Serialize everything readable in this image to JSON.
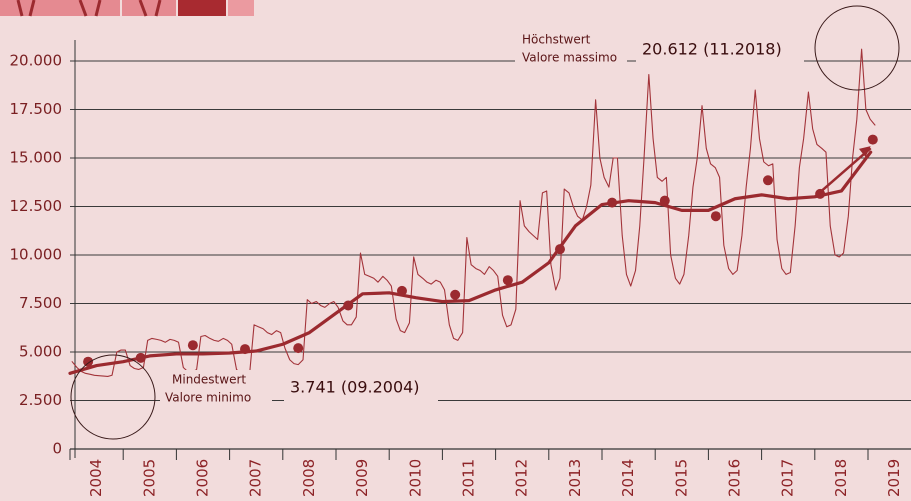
{
  "chart_data": {
    "type": "line",
    "ylim": [
      0,
      20000
    ],
    "yticks": [
      0,
      {
        "value": 2500,
        "label": "2.500"
      },
      {
        "value": 5000,
        "label": "5.000"
      },
      {
        "value": 7500,
        "label": "7.500"
      },
      {
        "value": 10000,
        "label": "10.000"
      },
      {
        "value": 12500,
        "label": "12.500"
      },
      {
        "value": 15000,
        "label": "15.000"
      },
      {
        "value": 17500,
        "label": "17.500"
      },
      {
        "value": 20000,
        "label": "20.000"
      }
    ],
    "xlim": [
      2004,
      2019.75
    ],
    "xticks": [
      {
        "value": 2004.5,
        "label": "2004"
      },
      {
        "value": 2005.5,
        "label": "2005"
      },
      {
        "value": 2006.5,
        "label": "2006"
      },
      {
        "value": 2007.5,
        "label": "2007"
      },
      {
        "value": 2008.5,
        "label": "2008"
      },
      {
        "value": 2009.5,
        "label": "2009"
      },
      {
        "value": 2010.5,
        "label": "2010"
      },
      {
        "value": 2011.5,
        "label": "2011"
      },
      {
        "value": 2012.5,
        "label": "2012"
      },
      {
        "value": 2013.5,
        "label": "2013"
      },
      {
        "value": 2014.5,
        "label": "2014"
      },
      {
        "value": 2015.5,
        "label": "2015"
      },
      {
        "value": 2016.5,
        "label": "2016"
      },
      {
        "value": 2017.5,
        "label": "2017"
      },
      {
        "value": 2018.5,
        "label": "2018"
      },
      {
        "value": 2019.5,
        "label": "2019"
      }
    ],
    "grid": true,
    "series": [
      {
        "style": "thin",
        "color": "#a3343a",
        "x": [
          2004.04,
          2004.13,
          2004.21,
          2004.29,
          2004.38,
          2004.46,
          2004.54,
          2004.63,
          2004.71,
          2004.79,
          2004.88,
          2004.96,
          2005.04,
          2005.13,
          2005.21,
          2005.29,
          2005.38,
          2005.46,
          2005.54,
          2005.63,
          2005.71,
          2005.79,
          2005.88,
          2005.96,
          2006.04,
          2006.13,
          2006.21,
          2006.29,
          2006.38,
          2006.46,
          2006.54,
          2006.63,
          2006.71,
          2006.79,
          2006.88,
          2006.96,
          2007.04,
          2007.13,
          2007.21,
          2007.29,
          2007.38,
          2007.46,
          2007.54,
          2007.63,
          2007.71,
          2007.79,
          2007.88,
          2007.96,
          2008.04,
          2008.13,
          2008.21,
          2008.29,
          2008.38,
          2008.46,
          2008.54,
          2008.63,
          2008.71,
          2008.79,
          2008.88,
          2008.96,
          2009.04,
          2009.13,
          2009.21,
          2009.29,
          2009.38,
          2009.46,
          2009.54,
          2009.63,
          2009.71,
          2009.79,
          2009.88,
          2009.96,
          2010.04,
          2010.13,
          2010.21,
          2010.29,
          2010.38,
          2010.46,
          2010.54,
          2010.63,
          2010.71,
          2010.79,
          2010.88,
          2010.96,
          2011.04,
          2011.13,
          2011.21,
          2011.29,
          2011.38,
          2011.46,
          2011.54,
          2011.63,
          2011.71,
          2011.79,
          2011.88,
          2011.96,
          2012.04,
          2012.13,
          2012.21,
          2012.29,
          2012.38,
          2012.46,
          2012.54,
          2012.63,
          2012.71,
          2012.79,
          2012.88,
          2012.96,
          2013.04,
          2013.13,
          2013.21,
          2013.29,
          2013.38,
          2013.46,
          2013.54,
          2013.63,
          2013.71,
          2013.79,
          2013.88,
          2013.96,
          2014.04,
          2014.13,
          2014.21,
          2014.29,
          2014.38,
          2014.46,
          2014.54,
          2014.63,
          2014.71,
          2014.79,
          2014.88,
          2014.96,
          2015.04,
          2015.13,
          2015.21,
          2015.29,
          2015.38,
          2015.46,
          2015.54,
          2015.63,
          2015.71,
          2015.79,
          2015.88,
          2015.96,
          2016.04,
          2016.13,
          2016.21,
          2016.29,
          2016.38,
          2016.46,
          2016.54,
          2016.63,
          2016.71,
          2016.79,
          2016.88,
          2016.96,
          2017.04,
          2017.13,
          2017.21,
          2017.29,
          2017.38,
          2017.46,
          2017.54,
          2017.63,
          2017.71,
          2017.79,
          2017.88,
          2017.96,
          2018.04,
          2018.13,
          2018.21,
          2018.29,
          2018.38,
          2018.46,
          2018.54,
          2018.63,
          2018.71,
          2018.79,
          2018.88,
          2018.96,
          2019.04,
          2019.13
        ],
        "values": [
          4500,
          4200,
          4000,
          3900,
          3850,
          3800,
          3780,
          3760,
          3741,
          3800,
          5000,
          5100,
          5100,
          4300,
          4150,
          4100,
          4200,
          5600,
          5700,
          5650,
          5600,
          5500,
          5650,
          5600,
          5500,
          4200,
          4000,
          3950,
          4100,
          5800,
          5850,
          5700,
          5600,
          5550,
          5700,
          5600,
          5400,
          4100,
          3900,
          3850,
          4000,
          6400,
          6300,
          6200,
          6000,
          5900,
          6100,
          6000,
          5200,
          4600,
          4400,
          4350,
          4600,
          7700,
          7500,
          7600,
          7400,
          7300,
          7500,
          7600,
          7300,
          6600,
          6400,
          6400,
          6800,
          10100,
          9000,
          8900,
          8800,
          8600,
          8900,
          8700,
          8400,
          6700,
          6100,
          6000,
          6500,
          9900,
          9000,
          8800,
          8600,
          8500,
          8700,
          8600,
          8200,
          6400,
          5700,
          5600,
          6000,
          10900,
          9500,
          9300,
          9200,
          9000,
          9400,
          9200,
          8900,
          6900,
          6300,
          6400,
          7200,
          12800,
          11500,
          11200,
          11000,
          10800,
          13200,
          13300,
          9500,
          8200,
          8800,
          13400,
          13200,
          12500,
          12000,
          11800,
          12500,
          13600,
          18000,
          15000,
          14000,
          13500,
          15000,
          15000,
          11000,
          9000,
          8400,
          9200,
          11500,
          15000,
          19300,
          16000,
          14000,
          13800,
          14000,
          10000,
          8800,
          8500,
          9000,
          11000,
          13500,
          15000,
          17700,
          15500,
          14700,
          14500,
          14000,
          10500,
          9300,
          9000,
          9200,
          11000,
          13500,
          15500,
          18500,
          16000,
          14800,
          14600,
          14700,
          10800,
          9300,
          9000,
          9100,
          11500,
          14500,
          16000,
          18400,
          16500,
          15700,
          15500,
          15300,
          11500,
          10000,
          9900,
          10100,
          12000,
          15000,
          17000,
          20612,
          17500,
          17000,
          16700
        ]
      },
      {
        "style": "trend",
        "color": "#9b2a2f",
        "x": [
          2004.0,
          2004.5,
          2005.0,
          2005.5,
          2006.0,
          2006.5,
          2007.0,
          2007.5,
          2008.0,
          2008.5,
          2009.0,
          2009.5,
          2010.0,
          2010.5,
          2011.0,
          2011.5,
          2012.0,
          2012.5,
          2013.0,
          2013.5,
          2014.0,
          2014.5,
          2015.0,
          2015.5,
          2016.0,
          2016.5,
          2017.0,
          2017.5,
          2018.0,
          2018.5,
          2019.05
        ],
        "values": [
          3900,
          4300,
          4500,
          4800,
          4900,
          4900,
          4950,
          5050,
          5400,
          6000,
          7000,
          8000,
          8050,
          7800,
          7600,
          7650,
          8200,
          8600,
          9600,
          11500,
          12600,
          12800,
          12700,
          12300,
          12300,
          12900,
          13100,
          12900,
          13000,
          13300,
          15300
        ]
      },
      {
        "style": "dots",
        "color": "#9b2a2f",
        "x": [
          2004.34,
          2005.33,
          2006.31,
          2007.29,
          2008.29,
          2009.23,
          2010.24,
          2011.24,
          2012.23,
          2013.21,
          2014.19,
          2015.18,
          2016.14,
          2017.12,
          2018.1,
          2019.09
        ],
        "values": [
          4500,
          4700,
          5350,
          5150,
          5200,
          7400,
          8150,
          7950,
          8700,
          10300,
          12700,
          12800,
          12000,
          13850,
          13150,
          15950
        ]
      }
    ],
    "annotations": {
      "max_label_de": "Höchstwert",
      "max_label_it": "Valore massimo",
      "max_value": "20.612 (11.2018)",
      "min_label_de": "Mindestwert",
      "min_label_it": "Valore minimo",
      "min_value": "3.741 (09.2004)"
    }
  }
}
